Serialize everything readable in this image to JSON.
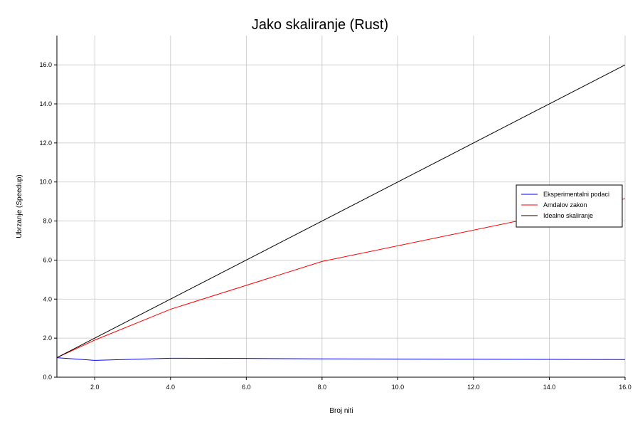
{
  "chart_data": {
    "type": "line",
    "title": "Jako skaliranje (Rust)",
    "xlabel": "Broj niti",
    "ylabel": "Ubrzanje (Speedup)",
    "xlim": [
      1,
      16
    ],
    "ylim": [
      0,
      17.5
    ],
    "xticks": [
      2.0,
      4.0,
      6.0,
      8.0,
      10.0,
      12.0,
      14.0,
      16.0
    ],
    "xtick_labels": [
      "2.0",
      "4.0",
      "6.0",
      "8.0",
      "10.0",
      "12.0",
      "14.0",
      "16.0"
    ],
    "yticks": [
      0.0,
      2.0,
      4.0,
      6.0,
      8.0,
      10.0,
      12.0,
      14.0,
      16.0
    ],
    "ytick_labels": [
      "0.0",
      "2.0",
      "4.0",
      "6.0",
      "8.0",
      "10.0",
      "12.0",
      "14.0",
      "16.0"
    ],
    "grid": true,
    "legend_position": "right",
    "series": [
      {
        "name": "Eksperimentalni podaci",
        "color": "#0000ff",
        "x": [
          1,
          2,
          4,
          6,
          8,
          10,
          12,
          14,
          16
        ],
        "y": [
          1.0,
          0.86,
          0.97,
          0.96,
          0.94,
          0.93,
          0.92,
          0.91,
          0.9
        ]
      },
      {
        "name": "Amdalov zakon",
        "color": "#ff0000",
        "x": [
          1,
          2,
          4,
          8,
          16
        ],
        "y": [
          1.0,
          1.9,
          3.48,
          5.93,
          9.14
        ]
      },
      {
        "name": "Idealno skaliranje",
        "color": "#000000",
        "x": [
          1,
          16
        ],
        "y": [
          1.0,
          16.0
        ]
      }
    ]
  }
}
